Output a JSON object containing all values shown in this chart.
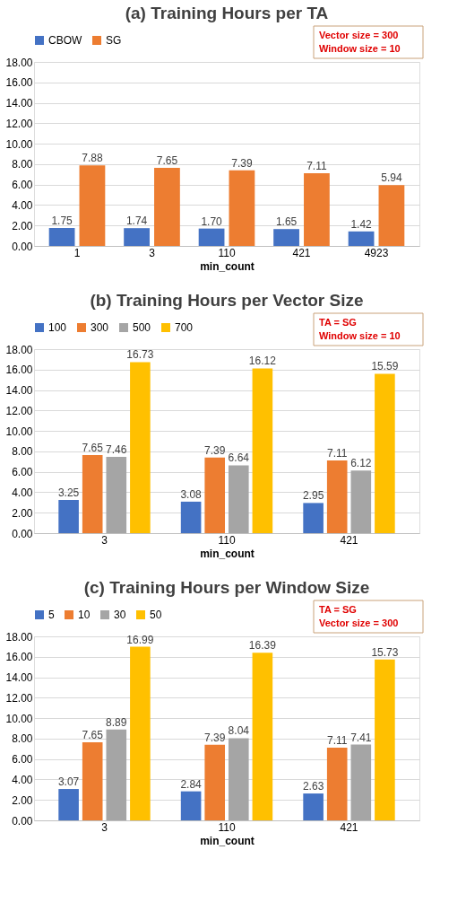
{
  "chart_data": [
    {
      "type": "bar",
      "title": "(a) Training Hours per TA",
      "xlabel": "min_count",
      "categories": [
        "1",
        "3",
        "110",
        "421",
        "4923"
      ],
      "series": [
        {
          "name": "CBOW",
          "color": "#4472c4",
          "values": [
            1.75,
            1.74,
            1.7,
            1.65,
            1.42
          ],
          "value_labels": [
            "1.75",
            "1.74",
            "1.70",
            "1.65",
            "1.42"
          ]
        },
        {
          "name": "SG",
          "color": "#ed7d31",
          "values": [
            7.88,
            7.65,
            7.39,
            7.11,
            5.94
          ],
          "value_labels": [
            "7.88",
            "7.65",
            "7.39",
            "7.11",
            "5.94"
          ]
        }
      ],
      "ylim": [
        0,
        18
      ],
      "yticks": [
        {
          "value": 0,
          "label": "0.00"
        },
        {
          "value": 2,
          "label": "2.00"
        },
        {
          "value": 4,
          "label": "4.00"
        },
        {
          "value": 6,
          "label": "6.00"
        },
        {
          "value": 8,
          "label": "8.00"
        },
        {
          "value": 10,
          "label": "10.00"
        },
        {
          "value": 12,
          "label": "12.00"
        },
        {
          "value": 14,
          "label": "14.00"
        },
        {
          "value": 16,
          "label": "16.00"
        },
        {
          "value": 18,
          "label": "18.00"
        }
      ],
      "grid": "y",
      "legend": "top",
      "data_labels": true,
      "annotations": [
        "Vector size = 300",
        "Window size = 10"
      ]
    },
    {
      "type": "bar",
      "title": "(b) Training Hours per Vector Size",
      "xlabel": "min_count",
      "categories": [
        "3",
        "110",
        "421"
      ],
      "series": [
        {
          "name": "100",
          "color": "#4472c4",
          "values": [
            3.25,
            3.08,
            2.95
          ],
          "value_labels": [
            "3.25",
            "3.08",
            "2.95"
          ]
        },
        {
          "name": "300",
          "color": "#ed7d31",
          "values": [
            7.65,
            7.39,
            7.11
          ],
          "value_labels": [
            "7.65",
            "7.39",
            "7.11"
          ]
        },
        {
          "name": "500",
          "color": "#a5a5a5",
          "values": [
            7.46,
            6.64,
            6.12
          ],
          "value_labels": [
            "7.46",
            "6.64",
            "6.12"
          ]
        },
        {
          "name": "700",
          "color": "#ffc000",
          "values": [
            16.73,
            16.12,
            15.59
          ],
          "value_labels": [
            "16.73",
            "16.12",
            "15.59"
          ]
        }
      ],
      "ylim": [
        0,
        18
      ],
      "yticks": [
        {
          "value": 0,
          "label": "0.00"
        },
        {
          "value": 2,
          "label": "2.00"
        },
        {
          "value": 4,
          "label": "4.00"
        },
        {
          "value": 6,
          "label": "6.00"
        },
        {
          "value": 8,
          "label": "8.00"
        },
        {
          "value": 10,
          "label": "10.00"
        },
        {
          "value": 12,
          "label": "12.00"
        },
        {
          "value": 14,
          "label": "14.00"
        },
        {
          "value": 16,
          "label": "16.00"
        },
        {
          "value": 18,
          "label": "18.00"
        }
      ],
      "grid": "y",
      "legend": "top",
      "data_labels": true,
      "annotations": [
        "TA = SG",
        "Window size = 10"
      ]
    },
    {
      "type": "bar",
      "title": "(c) Training Hours per Window Size",
      "xlabel": "min_count",
      "categories": [
        "3",
        "110",
        "421"
      ],
      "series": [
        {
          "name": "5",
          "color": "#4472c4",
          "values": [
            3.07,
            2.84,
            2.63
          ],
          "value_labels": [
            "3.07",
            "2.84",
            "2.63"
          ]
        },
        {
          "name": "10",
          "color": "#ed7d31",
          "values": [
            7.65,
            7.39,
            7.11
          ],
          "value_labels": [
            "7.65",
            "7.39",
            "7.11"
          ]
        },
        {
          "name": "30",
          "color": "#a5a5a5",
          "values": [
            8.89,
            8.04,
            7.41
          ],
          "value_labels": [
            "8.89",
            "8.04",
            "7.41"
          ]
        },
        {
          "name": "50",
          "color": "#ffc000",
          "values": [
            16.99,
            16.39,
            15.73
          ],
          "value_labels": [
            "16.99",
            "16.39",
            "15.73"
          ]
        }
      ],
      "ylim": [
        0,
        18
      ],
      "yticks": [
        {
          "value": 0,
          "label": "0.00"
        },
        {
          "value": 2,
          "label": "2.00"
        },
        {
          "value": 4,
          "label": "4.00"
        },
        {
          "value": 6,
          "label": "6.00"
        },
        {
          "value": 8,
          "label": "8.00"
        },
        {
          "value": 10,
          "label": "10.00"
        },
        {
          "value": 12,
          "label": "12.00"
        },
        {
          "value": 14,
          "label": "14.00"
        },
        {
          "value": 16,
          "label": "16.00"
        },
        {
          "value": 18,
          "label": "18.00"
        }
      ],
      "grid": "y",
      "legend": "top",
      "data_labels": true,
      "annotations": [
        "TA = SG",
        "Vector size = 300"
      ]
    }
  ]
}
